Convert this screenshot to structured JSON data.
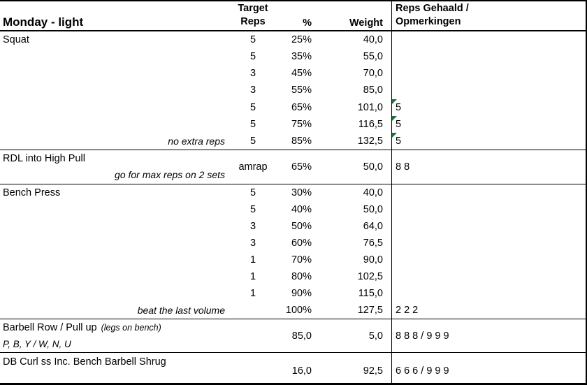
{
  "colors": {
    "flag_green": "#1e6f3c",
    "border": "#000000",
    "background": "#ffffff",
    "text": "#000000"
  },
  "header": {
    "title": "Monday - light",
    "target_line1": "Target",
    "target_line2": "Reps",
    "pct": "%",
    "weight": "Weight",
    "notes_line1": "Reps Gehaald /",
    "notes_line2": "Opmerkingen"
  },
  "sections": [
    {
      "exercise": "Squat",
      "rows": [
        {
          "target": "5",
          "pct": "25%",
          "weight": "40,0",
          "reps": ""
        },
        {
          "target": "5",
          "pct": "35%",
          "weight": "55,0",
          "reps": ""
        },
        {
          "target": "3",
          "pct": "45%",
          "weight": "70,0",
          "reps": ""
        },
        {
          "target": "3",
          "pct": "55%",
          "weight": "85,0",
          "reps": ""
        },
        {
          "target": "5",
          "pct": "65%",
          "weight": "101,0",
          "reps": "5",
          "flagged": true
        },
        {
          "target": "5",
          "pct": "75%",
          "weight": "116,5",
          "reps": "5",
          "flagged": true
        },
        {
          "note": "no extra reps",
          "target": "5",
          "pct": "85%",
          "weight": "132,5",
          "reps": "5",
          "flagged": true
        }
      ]
    },
    {
      "exercise": "RDL into High Pull",
      "note": "go for max reps on 2 sets",
      "target": "amrap",
      "pct": "65%",
      "weight": "50,0",
      "reps": "8 8"
    },
    {
      "exercise": "Bench Press",
      "rows": [
        {
          "target": "5",
          "pct": "30%",
          "weight": "40,0",
          "reps": ""
        },
        {
          "target": "5",
          "pct": "40%",
          "weight": "50,0",
          "reps": ""
        },
        {
          "target": "3",
          "pct": "50%",
          "weight": "64,0",
          "reps": ""
        },
        {
          "target": "3",
          "pct": "60%",
          "weight": "76,5",
          "reps": ""
        },
        {
          "target": "1",
          "pct": "70%",
          "weight": "90,0",
          "reps": ""
        },
        {
          "target": "1",
          "pct": "80%",
          "weight": "102,5",
          "reps": ""
        },
        {
          "target": "1",
          "pct": "90%",
          "weight": "115,0",
          "reps": ""
        },
        {
          "note": "beat the last volume",
          "target": "",
          "pct": "100%",
          "weight": "127,5",
          "reps": "2 2 2"
        }
      ]
    },
    {
      "exercise": "Barbell Row / Pull up",
      "exercise_suffix": "(legs on bench)",
      "exercise_line2": "P, B, Y / W, N, U",
      "pct": "85,0",
      "weight": "5,0",
      "reps": "8 8 8 / 9 9 9"
    },
    {
      "exercise": "DB Curl ss Inc. Bench Barbell Shrug",
      "pct": "16,0",
      "weight": "92,5",
      "reps": "6 6 6 / 9 9 9"
    }
  ]
}
